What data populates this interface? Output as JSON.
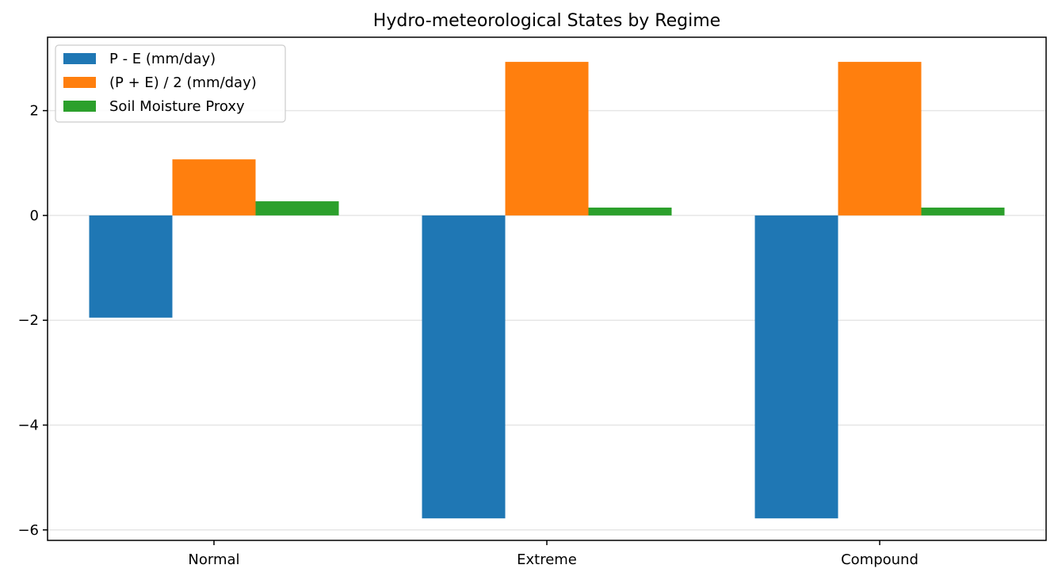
{
  "chart_data": {
    "type": "bar",
    "title": "Hydro-meteorological States by Regime",
    "xlabel": "",
    "ylabel": "",
    "categories": [
      "Normal",
      "Extreme",
      "Compound"
    ],
    "series": [
      {
        "name": "P - E (mm/day)",
        "color": "#1f77b4",
        "values": [
          -1.95,
          -5.78,
          -5.78
        ]
      },
      {
        "name": "(P + E) / 2 (mm/day)",
        "color": "#ff7f0e",
        "values": [
          1.07,
          2.93,
          2.93
        ]
      },
      {
        "name": "Soil Moisture Proxy",
        "color": "#2ca02c",
        "values": [
          0.27,
          0.15,
          0.15
        ]
      }
    ],
    "ylim": [
      -6.2,
      3.4
    ],
    "yticks": [
      2,
      0,
      -2,
      -4,
      -6
    ],
    "ytick_labels": [
      "2",
      "0",
      "−2",
      "−4",
      "−6"
    ],
    "grid": "horizontal",
    "legend_position": "upper-left"
  }
}
